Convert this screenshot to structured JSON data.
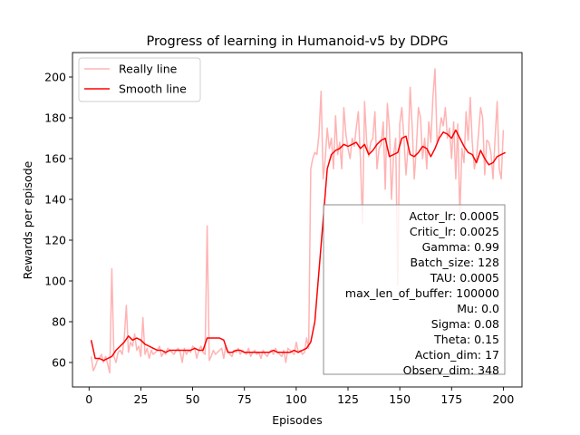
{
  "chart_data": {
    "type": "line",
    "title": "Progress of learning in Humanoid-v5 by DDPG",
    "xlabel": "Episodes",
    "ylabel": "Rewards per episode",
    "xlim": [
      -8,
      209
    ],
    "ylim": [
      48,
      212
    ],
    "xticks": [
      0,
      25,
      50,
      75,
      100,
      125,
      150,
      175,
      200
    ],
    "yticks": [
      60,
      80,
      100,
      120,
      140,
      160,
      180,
      200
    ],
    "grid": false,
    "legend_position": "top-left",
    "series": [
      {
        "name": "Really line",
        "color": "#ffb3b3",
        "x": [
          1,
          2,
          3,
          4,
          5,
          6,
          7,
          8,
          9,
          10,
          11,
          12,
          13,
          14,
          15,
          16,
          17,
          18,
          19,
          20,
          21,
          22,
          23,
          24,
          25,
          26,
          27,
          28,
          29,
          30,
          31,
          32,
          33,
          34,
          35,
          36,
          37,
          38,
          39,
          40,
          41,
          42,
          43,
          44,
          45,
          46,
          47,
          48,
          49,
          50,
          51,
          52,
          53,
          54,
          55,
          56,
          57,
          58,
          59,
          60,
          61,
          62,
          63,
          64,
          65,
          66,
          67,
          68,
          69,
          70,
          71,
          72,
          73,
          74,
          75,
          76,
          77,
          78,
          79,
          80,
          81,
          82,
          83,
          84,
          85,
          86,
          87,
          88,
          89,
          90,
          91,
          92,
          93,
          94,
          95,
          96,
          97,
          98,
          99,
          100,
          101,
          102,
          103,
          104,
          105,
          106,
          107,
          108,
          109,
          110,
          111,
          112,
          113,
          114,
          115,
          116,
          117,
          118,
          119,
          120,
          121,
          122,
          123,
          124,
          125,
          126,
          127,
          128,
          129,
          130,
          131,
          132,
          133,
          134,
          135,
          136,
          137,
          138,
          139,
          140,
          141,
          142,
          143,
          144,
          145,
          146,
          147,
          148,
          149,
          150,
          151,
          152,
          153,
          154,
          155,
          156,
          157,
          158,
          159,
          160,
          161,
          162,
          163,
          164,
          165,
          166,
          167,
          168,
          169,
          170,
          171,
          172,
          173,
          174,
          175,
          176,
          177,
          178,
          179,
          180,
          181,
          182,
          183,
          184,
          185,
          186,
          187,
          188,
          189,
          190,
          191,
          192,
          193,
          194,
          195,
          196,
          197,
          198,
          199,
          200
        ],
        "y": [
          63,
          56,
          58,
          61,
          62,
          64,
          60,
          63,
          59,
          55,
          106,
          63,
          60,
          65,
          66,
          64,
          72,
          88,
          65,
          70,
          68,
          74,
          66,
          68,
          63,
          82,
          64,
          67,
          62,
          66,
          64,
          65,
          66,
          68,
          63,
          65,
          64,
          67,
          66,
          65,
          64,
          66,
          67,
          65,
          60,
          67,
          64,
          66,
          65,
          68,
          67,
          62,
          66,
          68,
          65,
          64,
          127,
          61,
          63,
          66,
          64,
          65,
          66,
          67,
          62,
          68,
          66,
          64,
          63,
          66,
          65,
          67,
          64,
          66,
          65,
          64,
          67,
          63,
          65,
          66,
          64,
          65,
          62,
          66,
          64,
          63,
          65,
          66,
          64,
          67,
          65,
          64,
          63,
          66,
          60,
          67,
          66,
          65,
          64,
          70,
          65,
          66,
          64,
          65,
          72,
          67,
          155,
          160,
          163,
          162,
          172,
          193,
          150,
          160,
          175,
          165,
          170,
          155,
          181,
          162,
          168,
          155,
          185,
          172,
          165,
          160,
          170,
          166,
          175,
          183,
          160,
          128,
          188,
          168,
          161,
          168,
          170,
          183,
          155,
          165,
          167,
          178,
          145,
          187,
          175,
          140,
          162,
          170,
          98,
          177,
          185,
          170,
          152,
          166,
          195,
          175,
          150,
          165,
          185,
          180,
          160,
          170,
          155,
          178,
          168,
          190,
          204,
          168,
          172,
          180,
          176,
          185,
          170,
          175,
          160,
          178,
          150,
          177,
          132,
          165,
          158,
          183,
          169,
          190,
          168,
          155,
          160,
          172,
          185,
          180,
          152,
          169,
          168,
          163,
          150,
          170,
          188,
          155,
          150,
          174
        ]
      },
      {
        "name": "Smooth line",
        "color": "#ff0000",
        "x": [
          1,
          3,
          5,
          7,
          9,
          11,
          13,
          15,
          17,
          19,
          21,
          23,
          25,
          27,
          29,
          31,
          33,
          35,
          37,
          39,
          41,
          43,
          45,
          47,
          49,
          51,
          53,
          55,
          57,
          59,
          61,
          63,
          65,
          67,
          69,
          71,
          73,
          75,
          77,
          79,
          81,
          83,
          85,
          87,
          89,
          91,
          93,
          95,
          97,
          99,
          101,
          103,
          105,
          107,
          109,
          111,
          113,
          115,
          117,
          119,
          121,
          123,
          125,
          127,
          129,
          131,
          133,
          135,
          137,
          139,
          141,
          143,
          145,
          147,
          149,
          151,
          153,
          155,
          157,
          159,
          161,
          163,
          165,
          167,
          169,
          171,
          173,
          175,
          177,
          179,
          181,
          183,
          185,
          187,
          189,
          191,
          193,
          195,
          197,
          199,
          201
        ],
        "y": [
          71,
          62,
          62,
          61,
          62,
          63,
          66,
          68,
          70,
          73,
          71,
          72,
          71,
          69,
          68,
          67,
          66,
          66,
          65,
          66,
          66,
          66,
          66,
          66,
          66,
          67,
          66,
          66,
          72,
          72,
          72,
          72,
          71,
          65,
          65,
          66,
          66,
          65,
          65,
          65,
          65,
          65,
          65,
          65,
          66,
          65,
          65,
          65,
          65,
          66,
          65,
          66,
          67,
          70,
          80,
          105,
          130,
          155,
          162,
          164,
          165,
          167,
          166,
          167,
          168,
          165,
          167,
          162,
          164,
          167,
          169,
          170,
          161,
          162,
          163,
          170,
          171,
          162,
          161,
          163,
          166,
          165,
          161,
          165,
          170,
          173,
          172,
          170,
          174,
          170,
          166,
          163,
          162,
          158,
          164,
          160,
          157,
          158,
          161,
          162,
          163
        ]
      }
    ],
    "annotation_box": [
      "Actor_lr: 0.0005",
      "Critic_lr: 0.0025",
      "Gamma: 0.99",
      "Batch_size: 128",
      "TAU: 0.0005",
      "max_len_of_buffer: 100000",
      "Mu: 0.0",
      "Sigma: 0.08",
      "Theta: 0.15",
      "Action_dim: 17",
      "Observ_dim: 348"
    ]
  }
}
